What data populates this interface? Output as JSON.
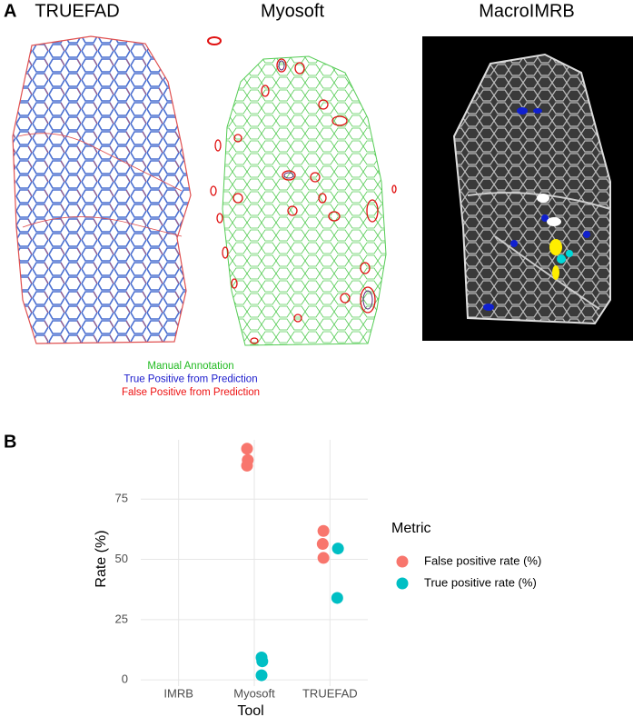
{
  "panel_a": {
    "label": "A",
    "titles": [
      "TRUEFAD",
      "Myosoft",
      "MacroIMRB"
    ],
    "legend": [
      {
        "text": "Manual Annotation",
        "color": "#22bb22"
      },
      {
        "text": "True Positive from Prediction",
        "color": "#1a1acc"
      },
      {
        "text": "False Positive from Prediction",
        "color": "#ee1111"
      }
    ]
  },
  "chart_data": {
    "type": "scatter",
    "panel_label": "B",
    "xlabel": "Tool",
    "ylabel": "Rate (%)",
    "legend_title": "Metric",
    "categories": [
      "IMRB",
      "Myosoft",
      "TRUEFAD"
    ],
    "ylim": [
      -2.6,
      99.6
    ],
    "yticks": [
      0,
      25,
      50,
      75
    ],
    "grid": true,
    "series": [
      {
        "name": "False positive rate (%)",
        "color": "#F8766D",
        "x": [
          "Myosoft",
          "Myosoft",
          "Myosoft",
          "TRUEFAD",
          "TRUEFAD",
          "TRUEFAD"
        ],
        "values": [
          95.9,
          91.2,
          88.9,
          61.8,
          56.4,
          50.6
        ]
      },
      {
        "name": "True positive rate (%)",
        "color": "#00BFC4",
        "x": [
          "Myosoft",
          "Myosoft",
          "Myosoft",
          "TRUEFAD",
          "TRUEFAD"
        ],
        "values": [
          9.3,
          7.7,
          1.9,
          54.5,
          34.0
        ]
      }
    ]
  }
}
